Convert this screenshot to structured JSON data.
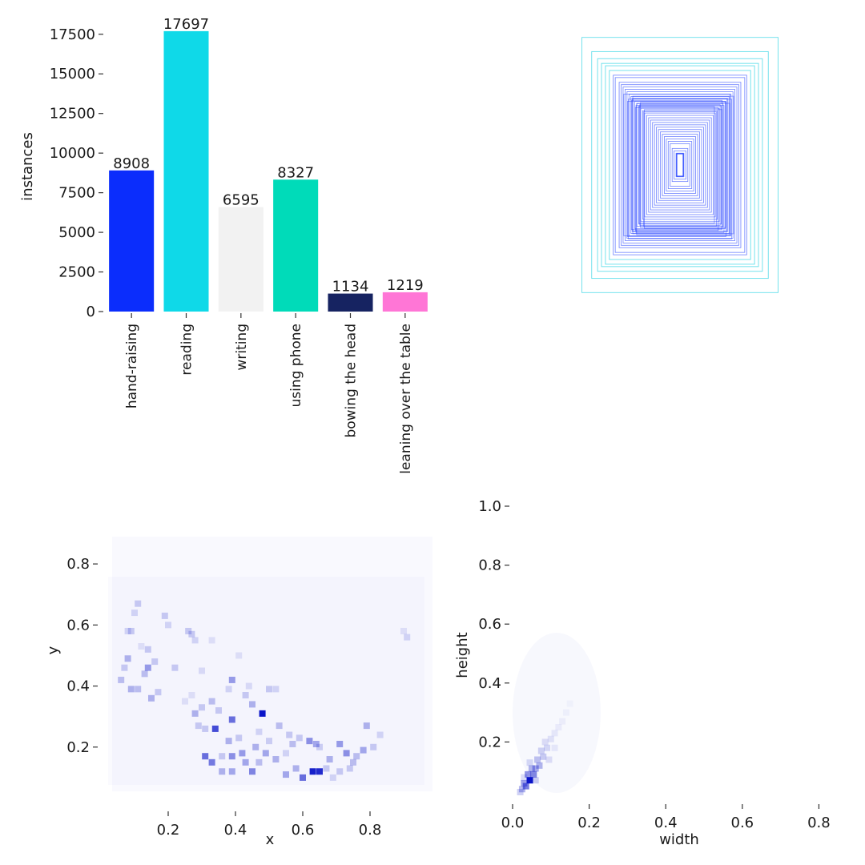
{
  "colors": {
    "hand-raising": "#0b2dfc",
    "reading": "#0fd9e8",
    "writing": "#f2f2f2",
    "using phone": "#00dbb9",
    "bowing the head": "#162361",
    "leaning over the table": "#ff76d6",
    "box_stroke": "#1f3dff",
    "heat": "#0a14c8"
  },
  "chart_data": [
    {
      "id": "class-counts",
      "type": "bar",
      "ylabel": "instances",
      "xlabel": "",
      "categories": [
        "hand-raising",
        "reading",
        "writing",
        "using phone",
        "bowing the head",
        "leaning over the table"
      ],
      "values": [
        8908,
        17697,
        6595,
        8327,
        1134,
        1219
      ],
      "data_labels": [
        "8908",
        "17697",
        "6595",
        "8327",
        "1134",
        "1219"
      ],
      "ylim": [
        0,
        18500
      ],
      "yticks": [
        0,
        2500,
        5000,
        7500,
        10000,
        12500,
        15000,
        17500
      ],
      "ytick_labels": [
        "0",
        "2500",
        "5000",
        "7500",
        "10000",
        "12500",
        "15000",
        "17500"
      ]
    },
    {
      "id": "box-overlay",
      "type": "other",
      "description_boxes_wh": [
        [
          0.5,
          0.54
        ],
        [
          0.45,
          0.48
        ],
        [
          0.42,
          0.45
        ],
        [
          0.4,
          0.43
        ],
        [
          0.38,
          0.42
        ],
        [
          0.36,
          0.4
        ],
        [
          0.34,
          0.38
        ],
        [
          0.33,
          0.37
        ],
        [
          0.31,
          0.35
        ],
        [
          0.3,
          0.34
        ],
        [
          0.29,
          0.33
        ],
        [
          0.28,
          0.32
        ],
        [
          0.27,
          0.31
        ],
        [
          0.26,
          0.3
        ],
        [
          0.25,
          0.29
        ],
        [
          0.24,
          0.28
        ],
        [
          0.23,
          0.27
        ],
        [
          0.22,
          0.26
        ],
        [
          0.21,
          0.25
        ],
        [
          0.2,
          0.24
        ],
        [
          0.19,
          0.23
        ],
        [
          0.18,
          0.22
        ],
        [
          0.17,
          0.21
        ],
        [
          0.16,
          0.2
        ],
        [
          0.15,
          0.19
        ],
        [
          0.14,
          0.18
        ],
        [
          0.13,
          0.17
        ],
        [
          0.12,
          0.16
        ],
        [
          0.11,
          0.15
        ],
        [
          0.1,
          0.14
        ],
        [
          0.09,
          0.13
        ],
        [
          0.08,
          0.12
        ],
        [
          0.07,
          0.11
        ],
        [
          0.06,
          0.1
        ],
        [
          0.05,
          0.09
        ],
        [
          0.04,
          0.07
        ],
        [
          0.03,
          0.06
        ],
        [
          0.02,
          0.05
        ],
        [
          0.01,
          0.04
        ]
      ]
    },
    {
      "id": "xy-heatmap",
      "type": "heatmap",
      "xlabel": "x",
      "ylabel": "y",
      "xlim": [
        0.0,
        1.0
      ],
      "ylim": [
        0.0,
        0.9
      ],
      "xticks": [
        0.2,
        0.4,
        0.6,
        0.8
      ],
      "xtick_labels": [
        "0.2",
        "0.4",
        "0.6",
        "0.8"
      ],
      "yticks": [
        0.2,
        0.4,
        0.6,
        0.8
      ],
      "ytick_labels": [
        "0.2",
        "0.4",
        "0.6",
        "0.8"
      ],
      "cells": [
        [
          0.48,
          0.31,
          1.0
        ],
        [
          0.63,
          0.12,
          0.95
        ],
        [
          0.65,
          0.12,
          0.9
        ],
        [
          0.6,
          0.1,
          0.6
        ],
        [
          0.34,
          0.26,
          0.75
        ],
        [
          0.39,
          0.29,
          0.6
        ],
        [
          0.31,
          0.17,
          0.6
        ],
        [
          0.33,
          0.15,
          0.55
        ],
        [
          0.39,
          0.17,
          0.45
        ],
        [
          0.42,
          0.18,
          0.4
        ],
        [
          0.45,
          0.12,
          0.5
        ],
        [
          0.43,
          0.15,
          0.35
        ],
        [
          0.36,
          0.12,
          0.3
        ],
        [
          0.39,
          0.12,
          0.35
        ],
        [
          0.46,
          0.2,
          0.3
        ],
        [
          0.49,
          0.18,
          0.35
        ],
        [
          0.52,
          0.16,
          0.3
        ],
        [
          0.55,
          0.11,
          0.35
        ],
        [
          0.57,
          0.21,
          0.25
        ],
        [
          0.59,
          0.23,
          0.2
        ],
        [
          0.62,
          0.22,
          0.45
        ],
        [
          0.64,
          0.21,
          0.35
        ],
        [
          0.68,
          0.16,
          0.3
        ],
        [
          0.71,
          0.21,
          0.4
        ],
        [
          0.73,
          0.18,
          0.45
        ],
        [
          0.75,
          0.15,
          0.25
        ],
        [
          0.78,
          0.19,
          0.35
        ],
        [
          0.79,
          0.27,
          0.3
        ],
        [
          0.81,
          0.2,
          0.2
        ],
        [
          0.65,
          0.2,
          0.18
        ],
        [
          0.56,
          0.24,
          0.2
        ],
        [
          0.53,
          0.27,
          0.25
        ],
        [
          0.5,
          0.39,
          0.2
        ],
        [
          0.52,
          0.39,
          0.15
        ],
        [
          0.39,
          0.42,
          0.4
        ],
        [
          0.45,
          0.34,
          0.3
        ],
        [
          0.43,
          0.37,
          0.2
        ],
        [
          0.33,
          0.35,
          0.25
        ],
        [
          0.28,
          0.31,
          0.3
        ],
        [
          0.3,
          0.33,
          0.2
        ],
        [
          0.29,
          0.27,
          0.2
        ],
        [
          0.31,
          0.26,
          0.2
        ],
        [
          0.35,
          0.32,
          0.2
        ],
        [
          0.38,
          0.39,
          0.15
        ],
        [
          0.38,
          0.22,
          0.3
        ],
        [
          0.36,
          0.17,
          0.2
        ],
        [
          0.41,
          0.23,
          0.2
        ],
        [
          0.47,
          0.15,
          0.25
        ],
        [
          0.14,
          0.46,
          0.4
        ],
        [
          0.15,
          0.36,
          0.3
        ],
        [
          0.17,
          0.38,
          0.2
        ],
        [
          0.08,
          0.49,
          0.3
        ],
        [
          0.06,
          0.42,
          0.25
        ],
        [
          0.07,
          0.46,
          0.2
        ],
        [
          0.09,
          0.39,
          0.3
        ],
        [
          0.11,
          0.39,
          0.25
        ],
        [
          0.13,
          0.44,
          0.25
        ],
        [
          0.16,
          0.48,
          0.2
        ],
        [
          0.14,
          0.52,
          0.2
        ],
        [
          0.11,
          0.67,
          0.2
        ],
        [
          0.09,
          0.58,
          0.2
        ],
        [
          0.08,
          0.58,
          0.15
        ],
        [
          0.19,
          0.63,
          0.2
        ],
        [
          0.2,
          0.6,
          0.15
        ],
        [
          0.22,
          0.46,
          0.2
        ],
        [
          0.26,
          0.58,
          0.2
        ],
        [
          0.27,
          0.57,
          0.2
        ],
        [
          0.28,
          0.55,
          0.15
        ],
        [
          0.1,
          0.64,
          0.15
        ],
        [
          0.12,
          0.53,
          0.1
        ],
        [
          0.33,
          0.55,
          0.1
        ],
        [
          0.3,
          0.45,
          0.12
        ],
        [
          0.44,
          0.4,
          0.12
        ],
        [
          0.47,
          0.25,
          0.15
        ],
        [
          0.5,
          0.22,
          0.18
        ],
        [
          0.55,
          0.18,
          0.15
        ],
        [
          0.58,
          0.13,
          0.3
        ],
        [
          0.67,
          0.13,
          0.2
        ],
        [
          0.69,
          0.1,
          0.15
        ],
        [
          0.71,
          0.12,
          0.2
        ],
        [
          0.74,
          0.13,
          0.2
        ],
        [
          0.76,
          0.17,
          0.25
        ],
        [
          0.83,
          0.24,
          0.15
        ],
        [
          0.91,
          0.56,
          0.15
        ],
        [
          0.9,
          0.58,
          0.1
        ],
        [
          0.25,
          0.35,
          0.1
        ],
        [
          0.27,
          0.37,
          0.1
        ],
        [
          0.41,
          0.5,
          0.1
        ]
      ]
    },
    {
      "id": "wh-heatmap",
      "type": "heatmap",
      "xlabel": "width",
      "ylabel": "height",
      "xlim": [
        0.0,
        0.82
      ],
      "ylim": [
        0.0,
        1.0
      ],
      "xticks": [
        0.0,
        0.2,
        0.4,
        0.6,
        0.8
      ],
      "xtick_labels": [
        "0.0",
        "0.2",
        "0.4",
        "0.6",
        "0.8"
      ],
      "yticks": [
        0.2,
        0.4,
        0.6,
        0.8,
        1.0
      ],
      "ytick_labels": [
        "0.2",
        "0.4",
        "0.6",
        "0.8",
        "1.0"
      ],
      "cells": [
        [
          0.045,
          0.07,
          1.0
        ],
        [
          0.035,
          0.05,
          0.55
        ],
        [
          0.055,
          0.09,
          0.5
        ],
        [
          0.04,
          0.09,
          0.45
        ],
        [
          0.025,
          0.04,
          0.3
        ],
        [
          0.03,
          0.06,
          0.4
        ],
        [
          0.06,
          0.11,
          0.35
        ],
        [
          0.07,
          0.12,
          0.3
        ],
        [
          0.05,
          0.11,
          0.3
        ],
        [
          0.065,
          0.14,
          0.25
        ],
        [
          0.08,
          0.15,
          0.2
        ],
        [
          0.075,
          0.17,
          0.18
        ],
        [
          0.09,
          0.18,
          0.15
        ],
        [
          0.085,
          0.2,
          0.12
        ],
        [
          0.1,
          0.21,
          0.1
        ],
        [
          0.11,
          0.23,
          0.08
        ],
        [
          0.12,
          0.25,
          0.06
        ],
        [
          0.13,
          0.27,
          0.05
        ],
        [
          0.02,
          0.03,
          0.2
        ],
        [
          0.06,
          0.07,
          0.2
        ],
        [
          0.03,
          0.08,
          0.15
        ],
        [
          0.045,
          0.13,
          0.15
        ],
        [
          0.095,
          0.14,
          0.12
        ],
        [
          0.11,
          0.18,
          0.08
        ],
        [
          0.14,
          0.3,
          0.04
        ],
        [
          0.15,
          0.33,
          0.03
        ]
      ]
    }
  ]
}
